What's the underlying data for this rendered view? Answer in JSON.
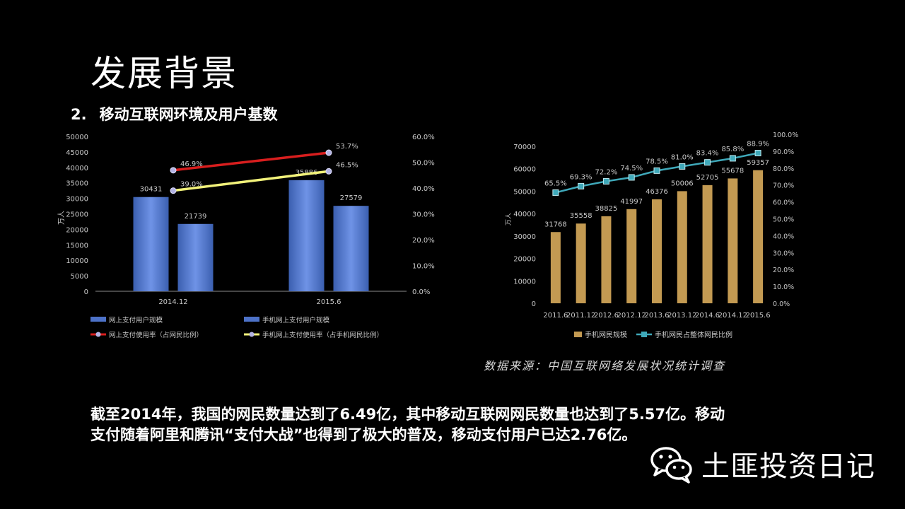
{
  "slide": {
    "title": "发展背景",
    "subtitle_number": "2.",
    "subtitle": "移动互联网环境及用户基数"
  },
  "source_note": "数据来源：中国互联网络发展状况统计调查",
  "body_lines": [
    "截至2014年，我国的网民数量达到了6.49亿，其中移动互联网网民数量也达到了5.57亿。移动",
    "支付随着阿里和腾讯“支付大战”也得到了极大的普及，移动支付用户已达2.76亿。"
  ],
  "brand": {
    "name": "土匪投资日记",
    "icon": "wechat-icon"
  },
  "colors": {
    "bar_blue": "#4d72c8",
    "bar_blue_light": "#6f93e6",
    "line_red": "#d81e1e",
    "line_yellow": "#f2f27a",
    "bar_gold": "#c39a52",
    "line_teal": "#3fa9ba",
    "axis_text": "#c8c8c8",
    "marker_blue": "#b4b4e4"
  },
  "chart_data": [
    {
      "type": "bar",
      "y_unit_label": "万人",
      "categories": [
        "2014.12",
        "2015.6"
      ],
      "ylim": [
        0,
        50000
      ],
      "y_ticks": [
        "0",
        "5000",
        "10000",
        "15000",
        "20000",
        "25000",
        "30000",
        "35000",
        "40000",
        "45000",
        "50000"
      ],
      "y2lim": [
        0,
        60
      ],
      "y2_ticks": [
        "0.0%",
        "10.0%",
        "20.0%",
        "30.0%",
        "40.0%",
        "50.0%",
        "60.0%"
      ],
      "series": [
        {
          "name": "网上支付用户规模",
          "kind": "bar",
          "values": [
            30431,
            35886
          ],
          "labels": [
            "30431",
            "35886"
          ]
        },
        {
          "name": "手机网上支付用户规模",
          "kind": "bar",
          "values": [
            21739,
            27579
          ],
          "labels": [
            "21739",
            "27579"
          ]
        },
        {
          "name": "网上支付使用率（占网民比例）",
          "kind": "line",
          "axis": "right",
          "values": [
            46.9,
            53.7
          ],
          "labels": [
            "46.9%",
            "53.7%"
          ]
        },
        {
          "name": "手机网上支付使用率（占手机网民比例）",
          "kind": "line",
          "axis": "right",
          "values": [
            39.0,
            46.5
          ],
          "labels": [
            "39.0%",
            "46.5%"
          ]
        }
      ]
    },
    {
      "type": "bar",
      "y_unit_label": "万人",
      "categories": [
        "2011.6",
        "2011.12",
        "2012.6",
        "2012.12",
        "2013.6",
        "2013.12",
        "2014.6",
        "2014.12",
        "2015.6"
      ],
      "ylim": [
        0,
        70000
      ],
      "y_ticks": [
        "0",
        "10000",
        "20000",
        "30000",
        "40000",
        "50000",
        "60000",
        "70000"
      ],
      "y2lim": [
        0,
        100
      ],
      "y2_ticks": [
        "0.0%",
        "10.0%",
        "20.0%",
        "30.0%",
        "40.0%",
        "50.0%",
        "60.0%",
        "70.0%",
        "80.0%",
        "90.0%",
        "100.0%"
      ],
      "series": [
        {
          "name": "手机网民规模",
          "kind": "bar",
          "values": [
            31768,
            35558,
            38825,
            41997,
            46376,
            50006,
            52705,
            55678,
            59357
          ],
          "labels": [
            "31768",
            "35558",
            "38825",
            "41997",
            "46376",
            "50006",
            "52705",
            "55678",
            "59357"
          ]
        },
        {
          "name": "手机网民占整体网民比例",
          "kind": "line",
          "axis": "right",
          "values": [
            65.5,
            69.3,
            72.2,
            74.5,
            78.5,
            81.0,
            83.4,
            85.8,
            88.9
          ],
          "labels": [
            "65.5%",
            "69.3%",
            "72.2%",
            "74.5%",
            "78.5%",
            "81.0%",
            "83.4%",
            "85.8%",
            "88.9%"
          ]
        }
      ]
    }
  ]
}
